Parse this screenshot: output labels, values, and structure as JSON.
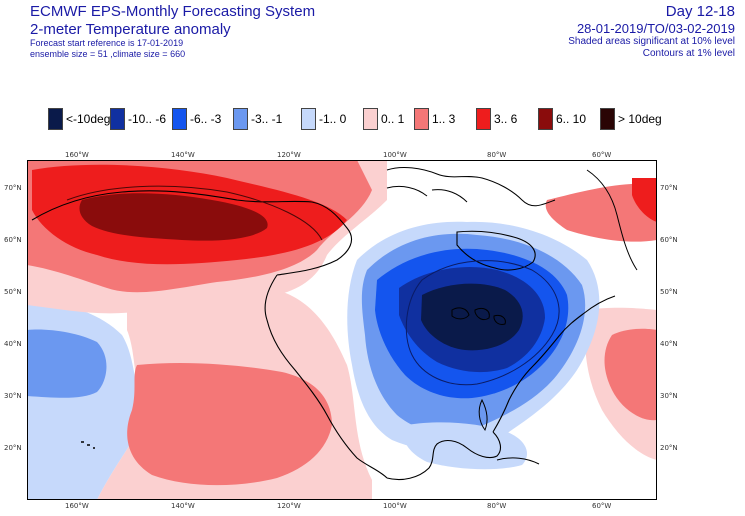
{
  "header": {
    "title": "ECMWF EPS-Monthly Forecasting System",
    "subtitle": "2-meter Temperature anomaly",
    "forecast_start": "Forecast start reference is 17-01-2019",
    "ensemble_info": "ensemble size = 51  ,climate size = 660",
    "day_range": "Day 12-18",
    "period": "28-01-2019/TO/03-02-2019",
    "significance_note": "Shaded areas significant at 10% level",
    "contour_note": "Contours at 1% level"
  },
  "legend": [
    {
      "label": "<-10deg",
      "color": "#0a1a4a"
    },
    {
      "label": "-10.. -6",
      "color": "#1030a0"
    },
    {
      "label": "-6.. -3",
      "color": "#1455ee"
    },
    {
      "label": "-3.. -1",
      "color": "#6b98f0"
    },
    {
      "label": "-1.. 0",
      "color": "#c6d9fb"
    },
    {
      "label": "0.. 1",
      "color": "#fbd0d0"
    },
    {
      "label": "1.. 3",
      "color": "#f47777"
    },
    {
      "label": "3.. 6",
      "color": "#ee1d1d"
    },
    {
      "label": "6.. 10",
      "color": "#8a0c0c"
    },
    {
      "label": "> 10deg",
      "color": "#2a0505"
    }
  ],
  "map": {
    "lon_labels": [
      "160°W",
      "140°W",
      "120°W",
      "100°W",
      "80°W",
      "60°W"
    ],
    "lat_labels": [
      "70°N",
      "60°N",
      "50°N",
      "40°N",
      "30°N",
      "20°N"
    ]
  }
}
